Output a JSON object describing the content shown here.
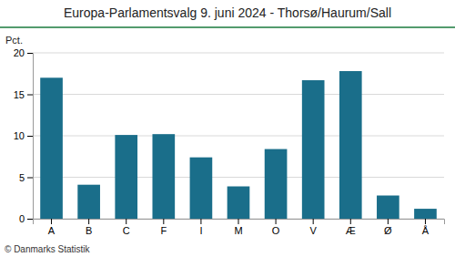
{
  "chart_data": {
    "type": "bar",
    "title": "Europa-Parlamentsvalg 9. juni 2024 - Thorsø/Haurum/Sall",
    "ylabel": "Pct.",
    "footnote": "© Danmarks Statistik",
    "categories": [
      "A",
      "B",
      "C",
      "F",
      "I",
      "M",
      "O",
      "V",
      "Æ",
      "Ø",
      "Å"
    ],
    "values": [
      17.0,
      4.1,
      10.1,
      10.2,
      7.4,
      3.9,
      8.4,
      16.7,
      17.8,
      2.8,
      1.2
    ],
    "color": "#1a6e8a",
    "ylim": [
      0,
      20
    ],
    "yticks": [
      0,
      5,
      10,
      15,
      20
    ],
    "grid": true
  }
}
